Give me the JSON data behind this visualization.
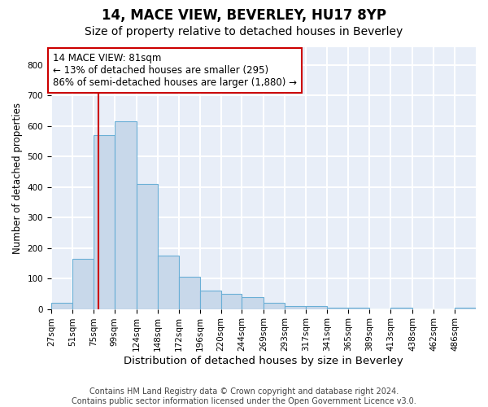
{
  "title": "14, MACE VIEW, BEVERLEY, HU17 8YP",
  "subtitle": "Size of property relative to detached houses in Beverley",
  "xlabel": "Distribution of detached houses by size in Beverley",
  "ylabel": "Number of detached properties",
  "bar_color": "#c8d8ea",
  "bar_edge_color": "#6aafd6",
  "vline_color": "#cc0000",
  "vline_x": 81,
  "annotation_text": "14 MACE VIEW: 81sqm\n← 13% of detached houses are smaller (295)\n86% of semi-detached houses are larger (1,880) →",
  "annotation_box_color": "#ffffff",
  "annotation_box_edge": "#cc0000",
  "bins": [
    27,
    51,
    75,
    99,
    124,
    148,
    172,
    196,
    220,
    244,
    269,
    293,
    317,
    341,
    365,
    389,
    413,
    438,
    462,
    486,
    510
  ],
  "bar_heights": [
    20,
    165,
    570,
    615,
    410,
    175,
    105,
    60,
    50,
    40,
    20,
    10,
    10,
    5,
    5,
    0,
    5,
    0,
    0,
    5
  ],
  "ylim": [
    0,
    860
  ],
  "yticks": [
    0,
    100,
    200,
    300,
    400,
    500,
    600,
    700,
    800
  ],
  "background_color": "#e8eef8",
  "grid_color": "#ffffff",
  "footer_text": "Contains HM Land Registry data © Crown copyright and database right 2024.\nContains public sector information licensed under the Open Government Licence v3.0.",
  "title_fontsize": 12,
  "subtitle_fontsize": 10,
  "xlabel_fontsize": 9.5,
  "ylabel_fontsize": 8.5,
  "tick_fontsize": 7.5,
  "annotation_fontsize": 8.5,
  "footer_fontsize": 7
}
